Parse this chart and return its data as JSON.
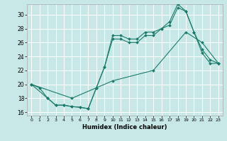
{
  "xlabel": "Humidex (Indice chaleur)",
  "bg_color": "#c8e8e8",
  "grid_color": "#ffffff",
  "line_color": "#1a7a6a",
  "xlim": [
    -0.5,
    23.5
  ],
  "ylim": [
    15.5,
    31.5
  ],
  "xticks": [
    0,
    1,
    2,
    3,
    4,
    5,
    6,
    7,
    8,
    9,
    10,
    11,
    12,
    13,
    14,
    15,
    16,
    17,
    18,
    19,
    20,
    21,
    22,
    23
  ],
  "yticks": [
    16,
    18,
    20,
    22,
    24,
    26,
    28,
    30
  ],
  "line1_x": [
    0,
    1,
    2,
    3,
    4,
    5,
    6,
    7,
    8,
    9,
    10,
    11,
    12,
    13,
    14,
    15,
    16,
    17,
    18,
    19,
    20,
    21,
    22,
    23
  ],
  "line1_y": [
    20,
    19.5,
    18,
    17,
    17,
    16.8,
    16.7,
    16.5,
    19.5,
    22.5,
    27,
    27,
    26.5,
    26.5,
    27.5,
    27.5,
    28,
    28.5,
    31,
    30.5,
    27.5,
    25,
    23.5,
    23
  ],
  "line2_x": [
    0,
    2,
    3,
    4,
    5,
    6,
    7,
    8,
    9,
    10,
    11,
    12,
    13,
    14,
    15,
    16,
    17,
    18,
    19,
    20,
    21,
    22,
    23
  ],
  "line2_y": [
    20,
    18,
    17,
    17,
    16.8,
    16.7,
    16.5,
    19.5,
    22.5,
    26.5,
    26.5,
    26,
    26,
    27,
    27,
    28,
    29,
    31.5,
    30.5,
    27.5,
    24.5,
    23,
    23
  ],
  "line3_x": [
    0,
    5,
    10,
    15,
    19,
    21,
    23
  ],
  "line3_y": [
    20,
    18,
    20.5,
    22,
    27.5,
    26,
    23
  ]
}
